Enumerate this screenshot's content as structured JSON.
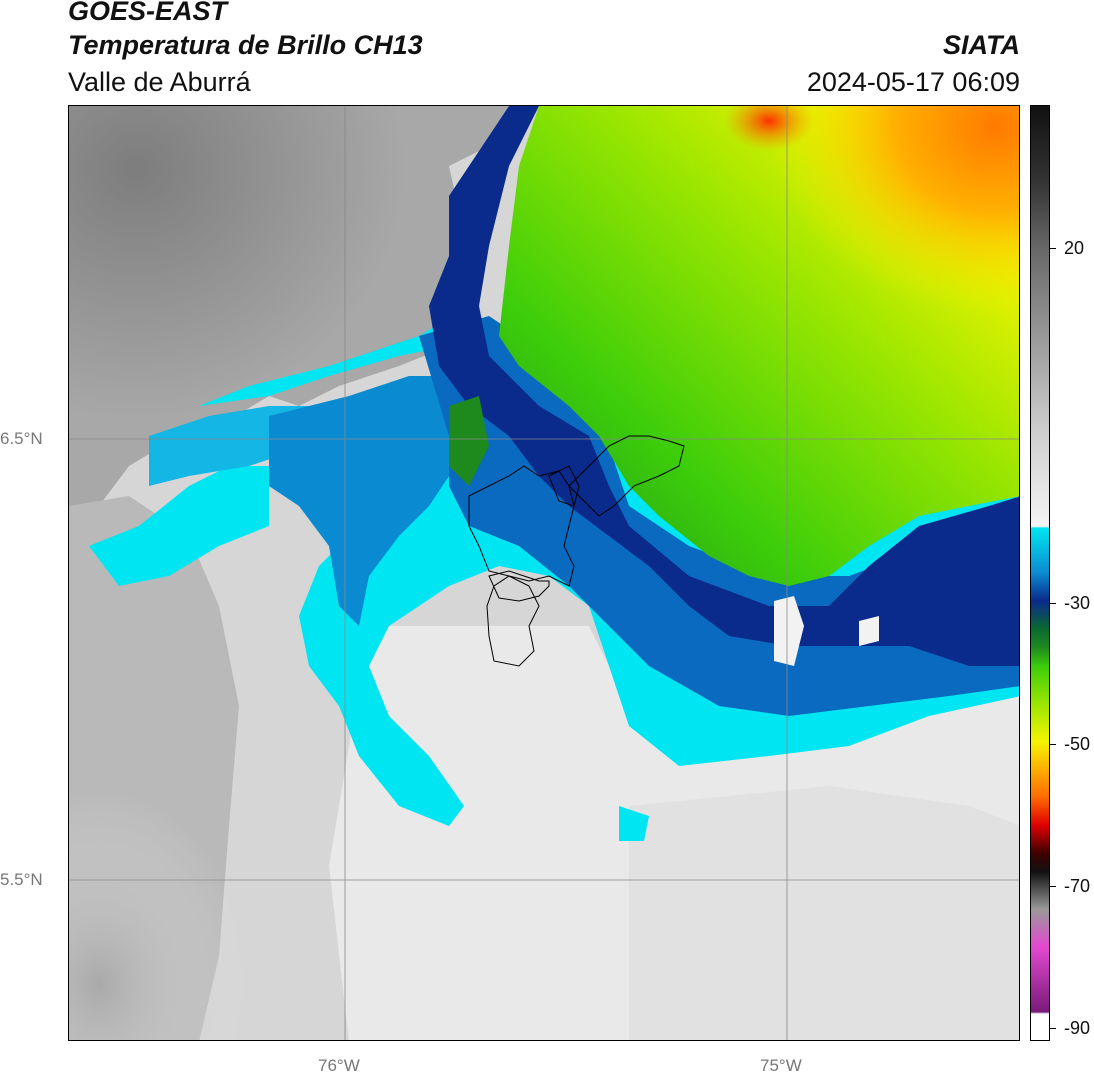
{
  "header": {
    "satellite": "GOES-EAST",
    "product": "Temperatura de Brillo CH13",
    "brand": "SIATA",
    "region": "Valle de Aburrá",
    "datetime": "2024-05-17 06:09"
  },
  "axes": {
    "lat_labels": [
      "6.5°N",
      "5.5°N"
    ],
    "lon_labels": [
      "76°W",
      "75°W"
    ]
  },
  "colorbar": {
    "ticks": [
      "20",
      "-30",
      "-50",
      "-70",
      "-90"
    ],
    "colors": {
      "warm_gray": "#1a1a1a",
      "cyan": "#00e5f2",
      "dark_blue": "#0a2a8c",
      "green": "#3ccd0a",
      "yellow": "#f4f400",
      "orange": "#ff8c00",
      "red": "#e00000",
      "magenta": "#e24ad0",
      "purple": "#7a1a7a"
    }
  }
}
